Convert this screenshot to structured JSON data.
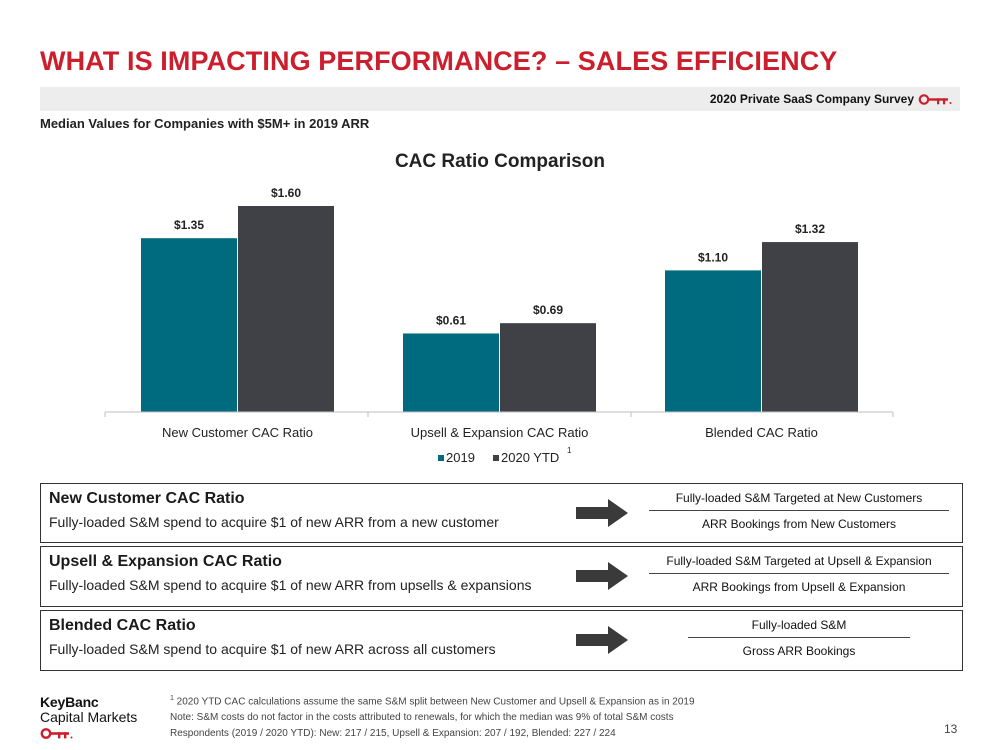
{
  "header": {
    "title": "WHAT IS IMPACTING PERFORMANCE? – SALES EFFICIENCY",
    "survey_label": "2020 Private SaaS Company Survey",
    "subtitle": "Median Values for Companies with $5M+ in 2019 ARR"
  },
  "colors": {
    "accent": "#cc1f2e",
    "series_2019": "#006a7e",
    "series_2020": "#3f4147"
  },
  "chart_data": {
    "type": "bar",
    "title": "CAC Ratio Comparison",
    "categories": [
      "New Customer CAC Ratio",
      "Upsell & Expansion CAC Ratio",
      "Blended CAC Ratio"
    ],
    "series": [
      {
        "name": "2019",
        "values": [
          1.35,
          0.61,
          1.1
        ],
        "labels": [
          "$1.35",
          "$0.61",
          "$1.10"
        ],
        "color": "#006a7e"
      },
      {
        "name": "2020 YTD",
        "values": [
          1.6,
          0.69,
          1.32
        ],
        "labels": [
          "$1.60",
          "$0.69",
          "$1.32"
        ],
        "color": "#3f4147"
      }
    ],
    "legend_superscript": "1",
    "ylim": [
      0,
      1.6
    ],
    "grid": false,
    "legend": "bottom"
  },
  "definitions": [
    {
      "title": "New Customer CAC Ratio",
      "description": "Fully-loaded S&M spend to acquire $1 of new ARR from a new customer",
      "numerator": "Fully-loaded S&M Targeted at New Customers",
      "denominator": "ARR Bookings from New Customers"
    },
    {
      "title": "Upsell & Expansion CAC Ratio",
      "description": "Fully-loaded S&M spend to acquire $1 of new ARR from upsells & expansions",
      "numerator": "Fully-loaded S&M Targeted at Upsell & Expansion",
      "denominator": "ARR Bookings from Upsell & Expansion"
    },
    {
      "title": "Blended CAC Ratio",
      "description": "Fully-loaded S&M spend to acquire $1 of new ARR across all customers",
      "numerator": "Fully-loaded S&M",
      "denominator": "Gross ARR Bookings"
    }
  ],
  "footer": {
    "logo_line1": "KeyBanc",
    "logo_line2": "Capital Markets",
    "footnote_1_marker": "1",
    "footnote_1": " 2020 YTD CAC calculations assume the same S&M split between New Customer and Upsell & Expansion as in 2019",
    "note": "Note: S&M costs do not factor in the costs attributed to renewals, for which the median was 9% of total S&M costs",
    "respondents": "Respondents (2019 / 2020 YTD): New: 217 / 215, Upsell & Expansion: 207 / 192, Blended: 227 / 224",
    "page_number": "13"
  }
}
